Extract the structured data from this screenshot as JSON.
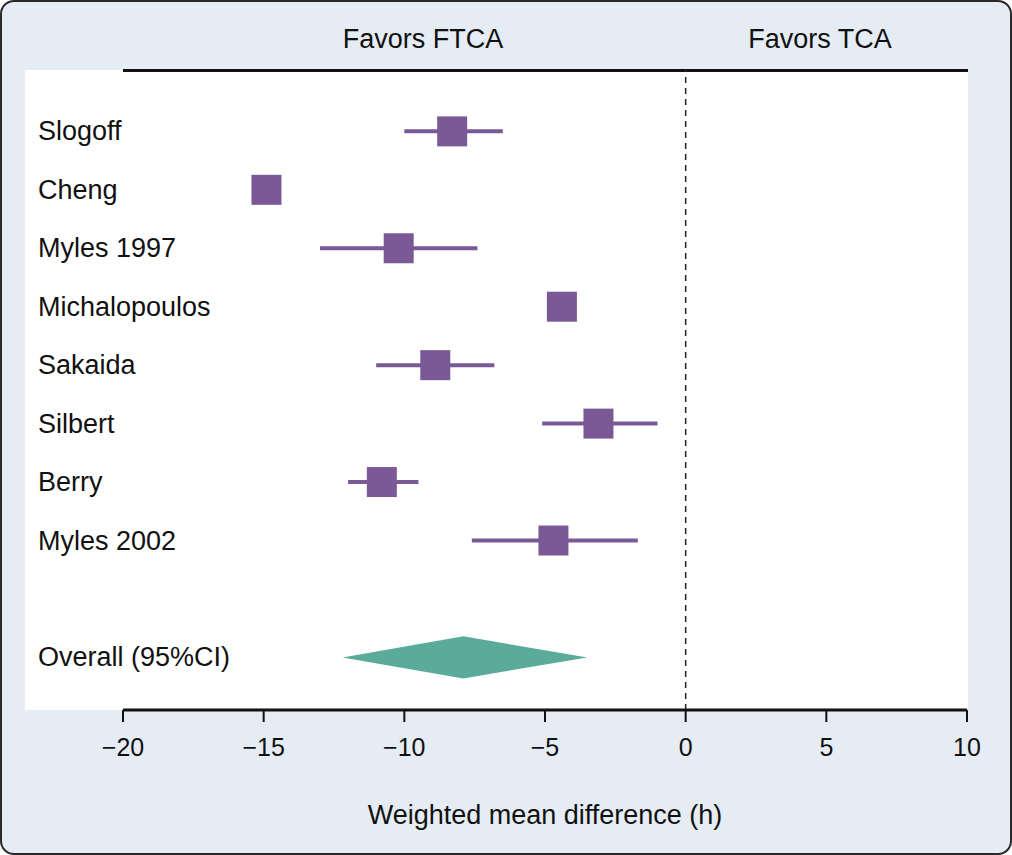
{
  "chart_data": {
    "type": "forest",
    "annotations": [
      "Favors FTCA",
      "Favors TCA"
    ],
    "x_label": "Weighted mean difference (h)",
    "categories": [
      "Slogoff",
      "Cheng",
      "Myles 1997",
      "Michalopoulos",
      "Sakaida",
      "Silbert",
      "Berry",
      "Myles 2002"
    ],
    "values": [
      -8.3,
      -14.9,
      -10.2,
      -4.4,
      -8.9,
      -3.1,
      -10.8,
      -4.7
    ],
    "ci_low": [
      -10.0,
      -15.2,
      -13.0,
      -4.7,
      -11.0,
      -5.1,
      -12.0,
      -7.6
    ],
    "ci_high": [
      -6.5,
      -14.6,
      -7.4,
      -4.1,
      -6.8,
      -1.0,
      -9.5,
      -1.7
    ],
    "color": "#7b5996",
    "marker": "square",
    "overall": {
      "label": "Overall (95%CI)",
      "value": -7.9,
      "ci_low": -12.2,
      "ci_high": -3.5,
      "color": "#5aab9a"
    },
    "null_line": 0,
    "xlim": [
      -20,
      10
    ],
    "xticks": [
      {
        "value": -20,
        "label": "−20"
      },
      {
        "value": -15,
        "label": "−15"
      },
      {
        "value": -10,
        "label": "−10"
      },
      {
        "value": -5,
        "label": "−5"
      },
      0,
      5,
      10
    ],
    "grid": false
  }
}
